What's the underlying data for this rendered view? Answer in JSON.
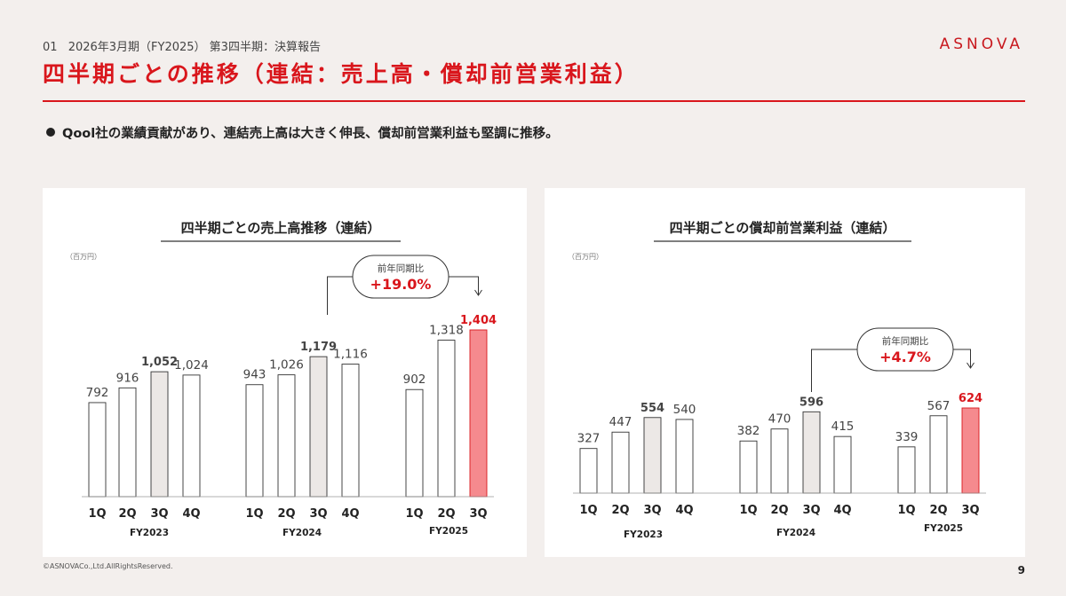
{
  "header": {
    "section_no": "01",
    "section_label": "2026年3月期（FY2025） 第3四半期：決算報告",
    "logo": "ASNOVA",
    "title": "四半期ごとの推移（連結：売上高・償却前営業利益）"
  },
  "bullet": "Qool社の業績貢献があり、連結売上高は大きく伸長、償却前営業利益も堅調に推移。",
  "footer": {
    "copyright": "©ASNOVACo.,Ltd.AllRightsReserved.",
    "page": "9"
  },
  "colors": {
    "accent": "#d9161c",
    "highlight_bar": "#f58a8e",
    "q3_bar": "#ece8e6",
    "bar_outline": "#333333"
  },
  "chart_data": [
    {
      "type": "bar",
      "title": "四半期ごとの売上高推移（連結）",
      "unit": "（百万円）",
      "groups": [
        "FY2023",
        "FY2024",
        "FY2025"
      ],
      "categories": [
        "1Q",
        "2Q",
        "3Q",
        "4Q",
        "1Q",
        "2Q",
        "3Q",
        "4Q",
        "1Q",
        "2Q",
        "3Q"
      ],
      "values": [
        792,
        916,
        1052,
        1024,
        943,
        1026,
        1179,
        1116,
        902,
        1318,
        1404
      ],
      "labels": [
        "792",
        "916",
        "1,052",
        "1,024",
        "943",
        "1,026",
        "1,179",
        "1,116",
        "902",
        "1,318",
        "1,404"
      ],
      "callout": {
        "label": "前年同期比",
        "value": "+19.0%"
      }
    },
    {
      "type": "bar",
      "title": "四半期ごとの償却前営業利益（連結）",
      "unit": "（百万円）",
      "groups": [
        "FY2023",
        "FY2024",
        "FY2025"
      ],
      "categories": [
        "1Q",
        "2Q",
        "3Q",
        "4Q",
        "1Q",
        "2Q",
        "3Q",
        "4Q",
        "1Q",
        "2Q",
        "3Q"
      ],
      "values": [
        327,
        447,
        554,
        540,
        382,
        470,
        596,
        415,
        339,
        567,
        624
      ],
      "labels": [
        "327",
        "447",
        "554",
        "540",
        "382",
        "470",
        "596",
        "415",
        "339",
        "567",
        "624"
      ],
      "callout": {
        "label": "前年同期比",
        "value": "+4.7%"
      }
    }
  ]
}
